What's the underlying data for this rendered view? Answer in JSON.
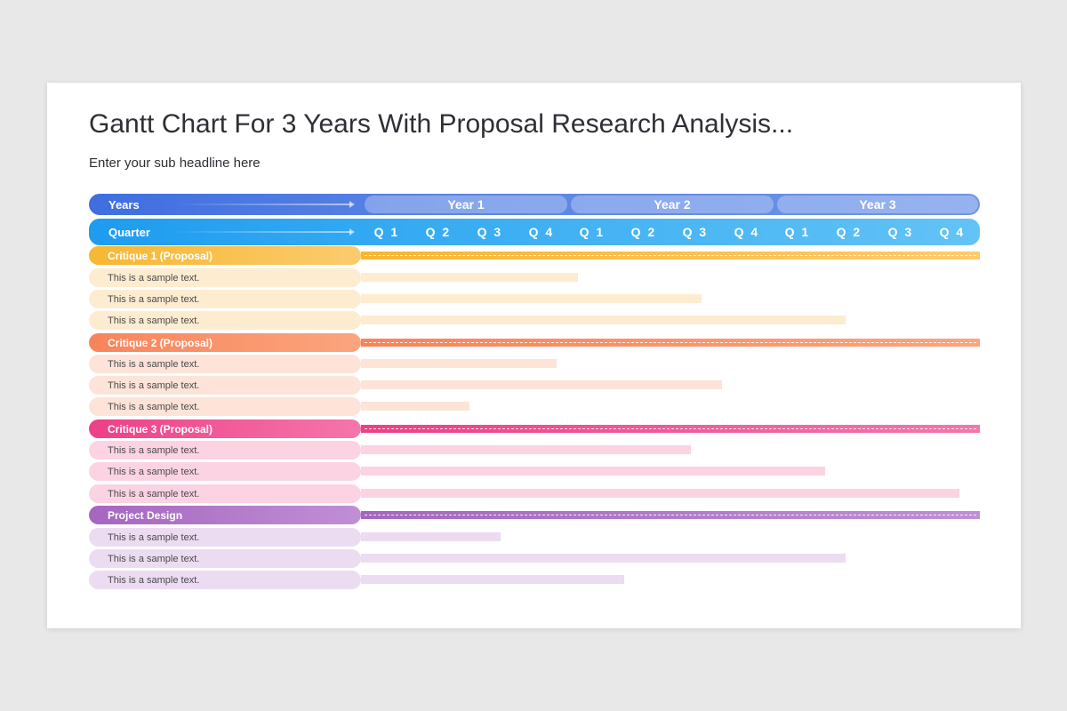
{
  "title": "Gantt Chart For 3 Years With Proposal Research Analysis...",
  "subtitle": "Enter your sub headline here",
  "header": {
    "years_label": "Years",
    "quarter_label": "Quarter",
    "years": [
      "Year 1",
      "Year 2",
      "Year 3"
    ],
    "quarters": [
      "Q 1",
      "Q 2",
      "Q 3",
      "Q 4",
      "Q 1",
      "Q 2",
      "Q 3",
      "Q 4",
      "Q 1",
      "Q 2",
      "Q 3",
      "Q 4"
    ]
  },
  "colors": {
    "years_header": "#4a78e2",
    "quarter_header": "#2aa6f2"
  },
  "groups": [
    {
      "label": "Critique 1 (Proposal)",
      "color": "#f7b733",
      "color2": "#fbcb6e",
      "light": "#fdecd0",
      "tasks": [
        {
          "label": "This is a sample text.",
          "end_quarter": 4.2
        },
        {
          "label": "This is a sample text.",
          "end_quarter": 6.6
        },
        {
          "label": "This is a sample text.",
          "end_quarter": 9.4
        }
      ]
    },
    {
      "label": "Critique 2 (Proposal)",
      "color": "#f7845a",
      "color2": "#fba57e",
      "light": "#fde3d8",
      "tasks": [
        {
          "label": "This is a sample text.",
          "end_quarter": 3.8
        },
        {
          "label": "This is a sample text.",
          "end_quarter": 7.0
        },
        {
          "label": "This is a sample text.",
          "end_quarter": 2.1
        }
      ]
    },
    {
      "label": "Critique 3 (Proposal)",
      "color": "#ee3f86",
      "color2": "#f576aa",
      "light": "#fbd3e3",
      "tasks": [
        {
          "label": "This is a sample text.",
          "end_quarter": 6.4
        },
        {
          "label": "This is a sample text.",
          "end_quarter": 9.0
        },
        {
          "label": "This is a sample text.",
          "end_quarter": 11.6
        }
      ]
    },
    {
      "label": "Project Design",
      "color": "#a566c0",
      "color2": "#c08fd5",
      "light": "#ecdcf1",
      "tasks": [
        {
          "label": "This is a sample text.",
          "end_quarter": 2.7
        },
        {
          "label": "This is a sample text.",
          "end_quarter": 9.4
        },
        {
          "label": "This is a sample text.",
          "end_quarter": 5.1
        }
      ]
    }
  ]
}
